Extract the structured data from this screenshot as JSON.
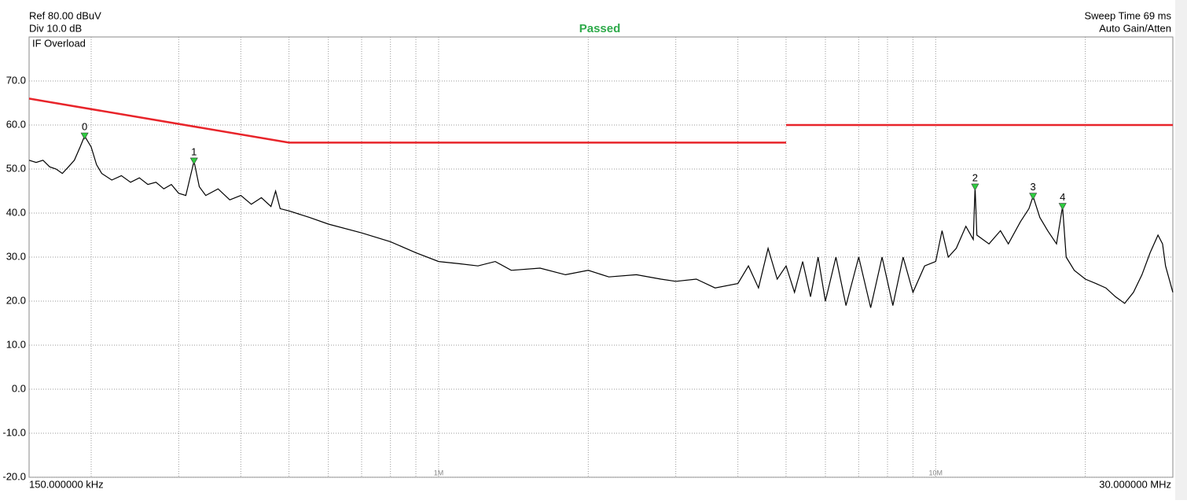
{
  "chart_data": {
    "type": "line",
    "ref_text": "Ref 80.00 dBuV",
    "div_text": "Div 10.0 dB",
    "status": "Passed",
    "overload_text": "IF Overload",
    "sweep_text": "Sweep Time 69 ms",
    "gain_text": "Auto Gain/Atten",
    "x_start_label": "150.000000 kHz",
    "x_end_label": "30.000000 MHz",
    "xlim": [
      0.15,
      30
    ],
    "xscale": "log",
    "ylim": [
      -20,
      80
    ],
    "grid": true,
    "yticks": [
      {
        "value": -20,
        "label": "-20.0"
      },
      {
        "value": -10,
        "label": "-10.0"
      },
      {
        "value": 0,
        "label": "0.0"
      },
      {
        "value": 10,
        "label": "10.0"
      },
      {
        "value": 20,
        "label": "20.0"
      },
      {
        "value": 30,
        "label": "30.0"
      },
      {
        "value": 40,
        "label": "40.0"
      },
      {
        "value": 50,
        "label": "50.0"
      },
      {
        "value": 60,
        "label": "60.0"
      },
      {
        "value": 70,
        "label": "70.0"
      }
    ],
    "xticks": [
      {
        "value": 0.2,
        "label": null
      },
      {
        "value": 0.3,
        "label": null
      },
      {
        "value": 0.4,
        "label": null
      },
      {
        "value": 0.5,
        "label": null
      },
      {
        "value": 0.6,
        "label": null
      },
      {
        "value": 0.7,
        "label": null
      },
      {
        "value": 0.8,
        "label": null
      },
      {
        "value": 0.9,
        "label": null
      },
      {
        "value": 1,
        "label": "1M"
      },
      {
        "value": 2,
        "label": null
      },
      {
        "value": 3,
        "label": null
      },
      {
        "value": 4,
        "label": null
      },
      {
        "value": 5,
        "label": null
      },
      {
        "value": 6,
        "label": null
      },
      {
        "value": 7,
        "label": null
      },
      {
        "value": 8,
        "label": null
      },
      {
        "value": 9,
        "label": null
      },
      {
        "value": 10,
        "label": "10M"
      },
      {
        "value": 20,
        "label": null
      }
    ],
    "limit": {
      "color": "#e8242a",
      "x": [
        0.15,
        0.5,
        5,
        5,
        5,
        30
      ],
      "values": [
        66,
        56,
        56,
        null,
        60,
        60
      ]
    },
    "trace": {
      "color": "#000000",
      "x": [
        0.15,
        0.155,
        0.16,
        0.165,
        0.17,
        0.175,
        0.18,
        0.185,
        0.19,
        0.194,
        0.2,
        0.205,
        0.21,
        0.22,
        0.23,
        0.24,
        0.25,
        0.26,
        0.27,
        0.28,
        0.29,
        0.3,
        0.31,
        0.322,
        0.33,
        0.34,
        0.36,
        0.38,
        0.4,
        0.42,
        0.44,
        0.46,
        0.47,
        0.48,
        0.5,
        0.55,
        0.6,
        0.7,
        0.8,
        0.9,
        1.0,
        1.1,
        1.2,
        1.3,
        1.4,
        1.6,
        1.8,
        2.0,
        2.2,
        2.5,
        2.8,
        3.0,
        3.3,
        3.6,
        4.0,
        4.2,
        4.4,
        4.6,
        4.8,
        5.0,
        5.2,
        5.4,
        5.6,
        5.8,
        6.0,
        6.3,
        6.6,
        7.0,
        7.4,
        7.8,
        8.2,
        8.6,
        9.0,
        9.5,
        10.0,
        10.3,
        10.6,
        11.0,
        11.5,
        11.9,
        12.0,
        12.1,
        12.8,
        13.5,
        14.0,
        14.8,
        15.4,
        15.7,
        16.2,
        16.8,
        17.5,
        18.0,
        18.3,
        19,
        20,
        21,
        22,
        23,
        24,
        25,
        26,
        27,
        28,
        28.6,
        29,
        30
      ],
      "values": [
        52,
        51.5,
        52,
        50.5,
        50,
        49,
        50.5,
        52,
        55,
        57.5,
        55,
        51,
        49,
        47.5,
        48.5,
        47,
        48,
        46.5,
        47,
        45.5,
        46.5,
        44.5,
        44,
        51.8,
        46,
        44,
        45.5,
        43,
        44,
        42,
        43.5,
        41.5,
        45,
        41,
        40.5,
        39,
        37.5,
        35.5,
        33.5,
        31,
        29,
        28.5,
        28,
        29,
        27,
        27.5,
        26,
        27,
        25.5,
        26,
        25,
        24.5,
        25,
        23,
        24,
        28,
        23,
        32,
        25,
        28,
        22,
        29,
        21,
        30,
        20,
        30,
        19,
        30,
        18.5,
        30,
        19,
        30,
        22,
        28,
        29,
        36,
        30,
        32,
        37,
        34,
        45.9,
        35,
        33,
        36,
        33,
        38,
        41,
        43.8,
        39,
        36,
        33,
        41.5,
        30,
        27,
        25,
        24,
        23,
        21,
        19.5,
        22,
        26,
        31,
        35,
        33,
        28,
        22
      ]
    },
    "markers": {
      "color": "#2ecc40",
      "labels": [
        "0",
        "1",
        "2",
        "3",
        "4"
      ],
      "x": [
        0.194,
        0.322,
        12.0,
        15.7,
        18.0
      ],
      "values": [
        57.5,
        51.8,
        45.9,
        43.8,
        41.5
      ]
    }
  }
}
